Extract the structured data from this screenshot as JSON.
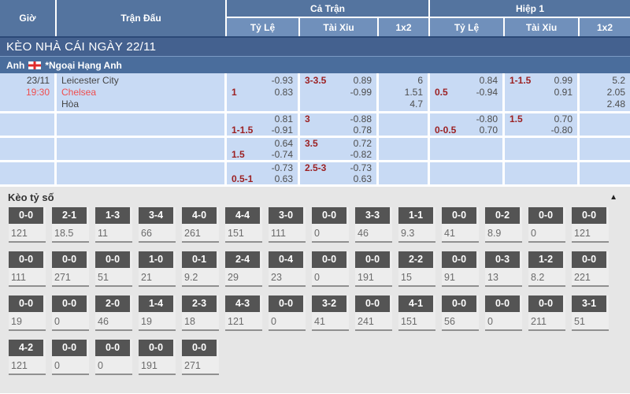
{
  "colors": {
    "header_blue": "#54749f",
    "subheader_blue": "#7090bb",
    "section_bar_blue": "#44618f",
    "league_bar_blue": "#4a6d9c",
    "row_blue": "#c8daf4",
    "accent_red": "#f04e4e",
    "handicap_maroon": "#9c2123",
    "score_header_gray": "#545454",
    "score_section_bg": "#e6e6e6"
  },
  "header": {
    "time": "Giờ",
    "match": "Trận Đấu",
    "full": "Cả Trận",
    "half": "Hiệp 1",
    "sub": {
      "hdp": "Tỷ Lệ",
      "ou": "Tài Xỉu",
      "x12": "1x2"
    }
  },
  "section_bar": {
    "title": "KÈO NHÀ CÁI NGÀY 22/11"
  },
  "league_bar": {
    "country": "Anh",
    "flag_icon": "england-flag",
    "league": "*Ngoại Hạng Anh"
  },
  "match": {
    "date": "23/11",
    "time": "19:30",
    "home": "Leicester City",
    "away": "Chelsea",
    "draw": "Hòa"
  },
  "odds_rows": [
    {
      "full_hdp": {
        "label": "1",
        "v1": "-0.93",
        "v2": "0.83"
      },
      "full_ou": {
        "label": "3-3.5",
        "v1": "0.89",
        "v2": "-0.99"
      },
      "full_1x2": [
        "6",
        "1.51",
        "4.7"
      ],
      "half_hdp": {
        "label": "0.5",
        "v1": "0.84",
        "v2": "-0.94"
      },
      "half_ou": {
        "label": "1-1.5",
        "v1": "0.99",
        "v2": "0.91"
      },
      "half_1x2": [
        "5.2",
        "2.05",
        "2.48"
      ]
    },
    {
      "full_hdp": {
        "label": "1-1.5",
        "v1": "0.81",
        "v2": "-0.91"
      },
      "full_ou": {
        "label": "3",
        "v1": "-0.88",
        "v2": "0.78"
      },
      "full_1x2": [],
      "half_hdp": {
        "label": "0-0.5",
        "v1": "-0.80",
        "v2": "0.70"
      },
      "half_ou": {
        "label": "1.5",
        "v1": "0.70",
        "v2": "-0.80"
      },
      "half_1x2": []
    },
    {
      "full_hdp": {
        "label": "1.5",
        "v1": "0.64",
        "v2": "-0.74"
      },
      "full_ou": {
        "label": "3.5",
        "v1": "0.72",
        "v2": "-0.82"
      },
      "full_1x2": [],
      "half_hdp": null,
      "half_ou": null,
      "half_1x2": []
    },
    {
      "full_hdp": {
        "label": "0.5-1",
        "v1": "-0.73",
        "v2": "0.63"
      },
      "full_ou": {
        "label": "2.5-3",
        "v1": "-0.73",
        "v2": "0.63"
      },
      "full_1x2": [],
      "half_hdp": null,
      "half_ou": null,
      "half_1x2": []
    }
  ],
  "score_section": {
    "title": "Kèo tỷ số",
    "collapse_glyph": "▲",
    "rows": [
      [
        {
          "score": "0-0",
          "odds": "121"
        },
        {
          "score": "2-1",
          "odds": "18.5"
        },
        {
          "score": "1-3",
          "odds": "11"
        },
        {
          "score": "3-4",
          "odds": "66"
        },
        {
          "score": "4-0",
          "odds": "261"
        },
        {
          "score": "4-4",
          "odds": "151"
        },
        {
          "score": "3-0",
          "odds": "111"
        },
        {
          "score": "0-0",
          "odds": "0"
        },
        {
          "score": "3-3",
          "odds": "46"
        },
        {
          "score": "1-1",
          "odds": "9.3"
        },
        {
          "score": "0-0",
          "odds": "41"
        },
        {
          "score": "0-2",
          "odds": "8.9"
        },
        {
          "score": "0-0",
          "odds": "0"
        },
        {
          "score": "0-0",
          "odds": "121"
        }
      ],
      [
        {
          "score": "0-0",
          "odds": "111"
        },
        {
          "score": "0-0",
          "odds": "271"
        },
        {
          "score": "0-0",
          "odds": "51"
        },
        {
          "score": "1-0",
          "odds": "21"
        },
        {
          "score": "0-1",
          "odds": "9.2"
        },
        {
          "score": "2-4",
          "odds": "29"
        },
        {
          "score": "0-4",
          "odds": "23"
        },
        {
          "score": "0-0",
          "odds": "0"
        },
        {
          "score": "0-0",
          "odds": "191"
        },
        {
          "score": "2-2",
          "odds": "15"
        },
        {
          "score": "0-0",
          "odds": "91"
        },
        {
          "score": "0-3",
          "odds": "13"
        },
        {
          "score": "1-2",
          "odds": "8.2"
        },
        {
          "score": "0-0",
          "odds": "221"
        }
      ],
      [
        {
          "score": "0-0",
          "odds": "19"
        },
        {
          "score": "0-0",
          "odds": "0"
        },
        {
          "score": "2-0",
          "odds": "46"
        },
        {
          "score": "1-4",
          "odds": "19"
        },
        {
          "score": "2-3",
          "odds": "18"
        },
        {
          "score": "4-3",
          "odds": "121"
        },
        {
          "score": "0-0",
          "odds": "0"
        },
        {
          "score": "3-2",
          "odds": "41"
        },
        {
          "score": "0-0",
          "odds": "241"
        },
        {
          "score": "4-1",
          "odds": "151"
        },
        {
          "score": "0-0",
          "odds": "56"
        },
        {
          "score": "0-0",
          "odds": "0"
        },
        {
          "score": "0-0",
          "odds": "211"
        },
        {
          "score": "3-1",
          "odds": "51"
        }
      ],
      [
        {
          "score": "4-2",
          "odds": "121"
        },
        {
          "score": "0-0",
          "odds": "0"
        },
        {
          "score": "0-0",
          "odds": "0"
        },
        {
          "score": "0-0",
          "odds": "191"
        },
        {
          "score": "0-0",
          "odds": "271"
        }
      ]
    ]
  }
}
